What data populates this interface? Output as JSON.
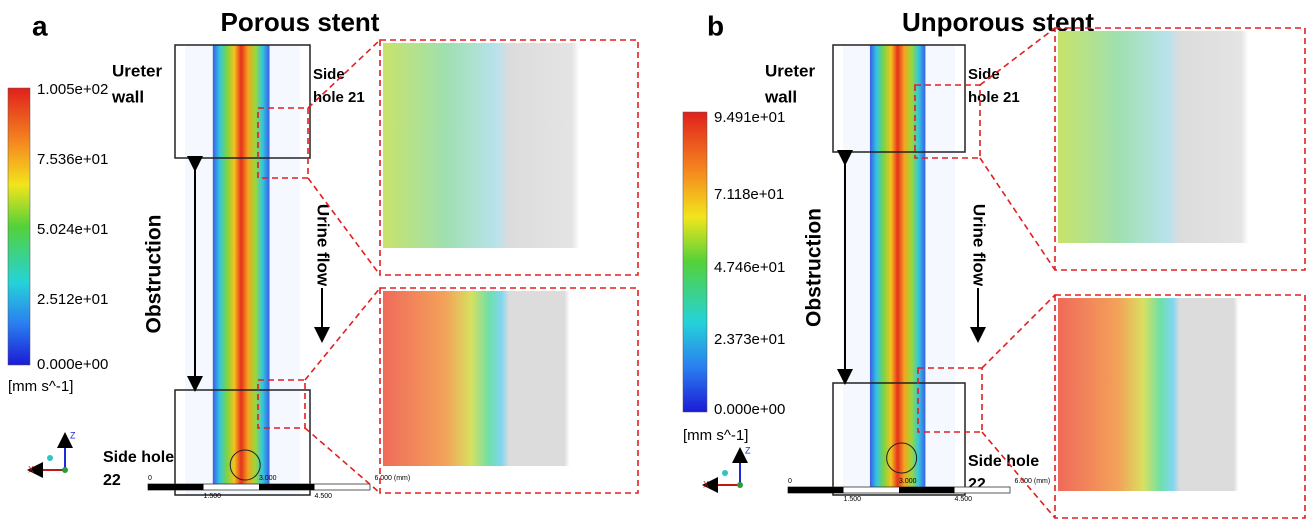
{
  "panels": [
    {
      "letter": "a",
      "title": "Porous stent",
      "colorbar": {
        "ticks": [
          "1.005e+02",
          "7.536e+01",
          "5.024e+01",
          "2.512e+01",
          "0.000e+00"
        ],
        "unit": "[mm s^-1]"
      },
      "ureter_wall": [
        "Ureter",
        "wall"
      ],
      "side_hole_top": [
        "Side",
        "hole 21"
      ],
      "side_hole_bottom": [
        "Side hole",
        "22"
      ],
      "obstruction": "Obstruction",
      "flow": "Urine flow",
      "scale": [
        "0",
        "1.500",
        "3.000",
        "4.500",
        "6.000 (mm)"
      ],
      "axes": [
        "Z",
        "X"
      ]
    },
    {
      "letter": "b",
      "title": "Unporous stent",
      "colorbar": {
        "ticks": [
          "9.491e+01",
          "7.118e+01",
          "4.746e+01",
          "2.373e+01",
          "0.000e+00"
        ],
        "unit": "[mm s^-1]"
      },
      "ureter_wall": [
        "Ureter",
        "wall"
      ],
      "side_hole_top": [
        "Side",
        "hole 21"
      ],
      "side_hole_bottom": [
        "Side hole",
        "22"
      ],
      "obstruction": "Obstruction",
      "flow": "Urine flow",
      "scale": [
        "0",
        "1.500",
        "3.000",
        "4.500",
        "6.000 (mm)"
      ],
      "axes": [
        "Z",
        "X"
      ]
    }
  ]
}
